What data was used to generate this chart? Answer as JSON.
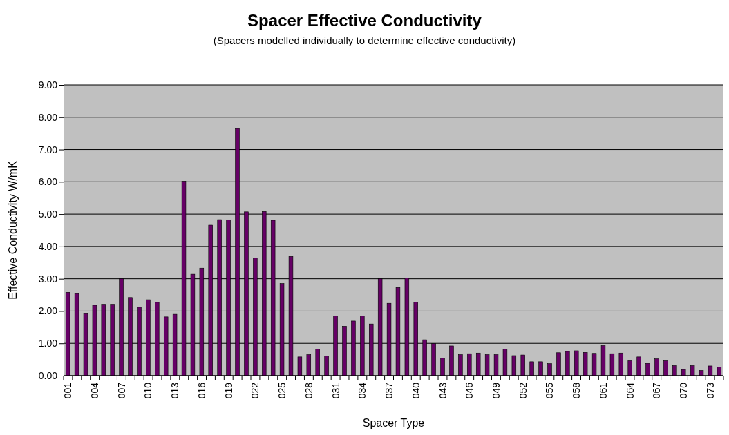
{
  "chart_data": {
    "type": "bar",
    "title": "Spacer Effective Conductivity",
    "subtitle": "(Spacers modelled individually to determine effective conductivity)",
    "xlabel": "Spacer Type",
    "ylabel": "Effective Conductivity W/mK",
    "categories": [
      "001",
      null,
      null,
      "004",
      null,
      null,
      "007",
      null,
      null,
      "010",
      null,
      null,
      "013",
      null,
      null,
      "016",
      null,
      null,
      "019",
      null,
      null,
      "022",
      null,
      null,
      "025",
      null,
      null,
      "028",
      null,
      null,
      "031",
      null,
      null,
      "034",
      null,
      null,
      "037",
      null,
      null,
      "040",
      null,
      null,
      "043",
      null,
      null,
      "046",
      null,
      null,
      "049",
      null,
      null,
      "052",
      null,
      null,
      "055",
      null,
      null,
      "058",
      null,
      null,
      "061",
      null,
      null,
      "064",
      null,
      null,
      "067",
      null,
      null,
      "070",
      null,
      null,
      "073",
      null
    ],
    "values": [
      2.58,
      2.54,
      1.92,
      2.18,
      2.21,
      2.21,
      3.0,
      2.42,
      2.12,
      2.35,
      2.27,
      1.82,
      1.9,
      6.02,
      3.14,
      3.33,
      4.66,
      4.83,
      4.82,
      7.65,
      5.07,
      3.64,
      5.08,
      4.81,
      2.85,
      3.69,
      0.58,
      0.65,
      0.82,
      0.61,
      1.85,
      1.53,
      1.69,
      1.85,
      1.6,
      3.0,
      2.24,
      2.73,
      3.02,
      2.28,
      1.11,
      0.99,
      0.54,
      0.92,
      0.65,
      0.68,
      0.7,
      0.65,
      0.65,
      0.82,
      0.62,
      0.64,
      0.43,
      0.43,
      0.37,
      0.71,
      0.75,
      0.77,
      0.72,
      0.69,
      0.93,
      0.68,
      0.7,
      0.46,
      0.58,
      0.38,
      0.52,
      0.46,
      0.31,
      0.19,
      0.31,
      0.16,
      0.3,
      0.27
    ],
    "color": "#660066",
    "ylim": [
      0,
      9
    ],
    "yticks": [
      {
        "value": 0,
        "label": "0.00"
      },
      {
        "value": 1,
        "label": "1.00"
      },
      {
        "value": 2,
        "label": "2.00"
      },
      {
        "value": 3,
        "label": "3.00"
      },
      {
        "value": 4,
        "label": "4.00"
      },
      {
        "value": 5,
        "label": "5.00"
      },
      {
        "value": 6,
        "label": "6.00"
      },
      {
        "value": 7,
        "label": "7.00"
      },
      {
        "value": 8,
        "label": "8.00"
      },
      {
        "value": 9,
        "label": "9.00"
      }
    ],
    "grid": "y"
  }
}
